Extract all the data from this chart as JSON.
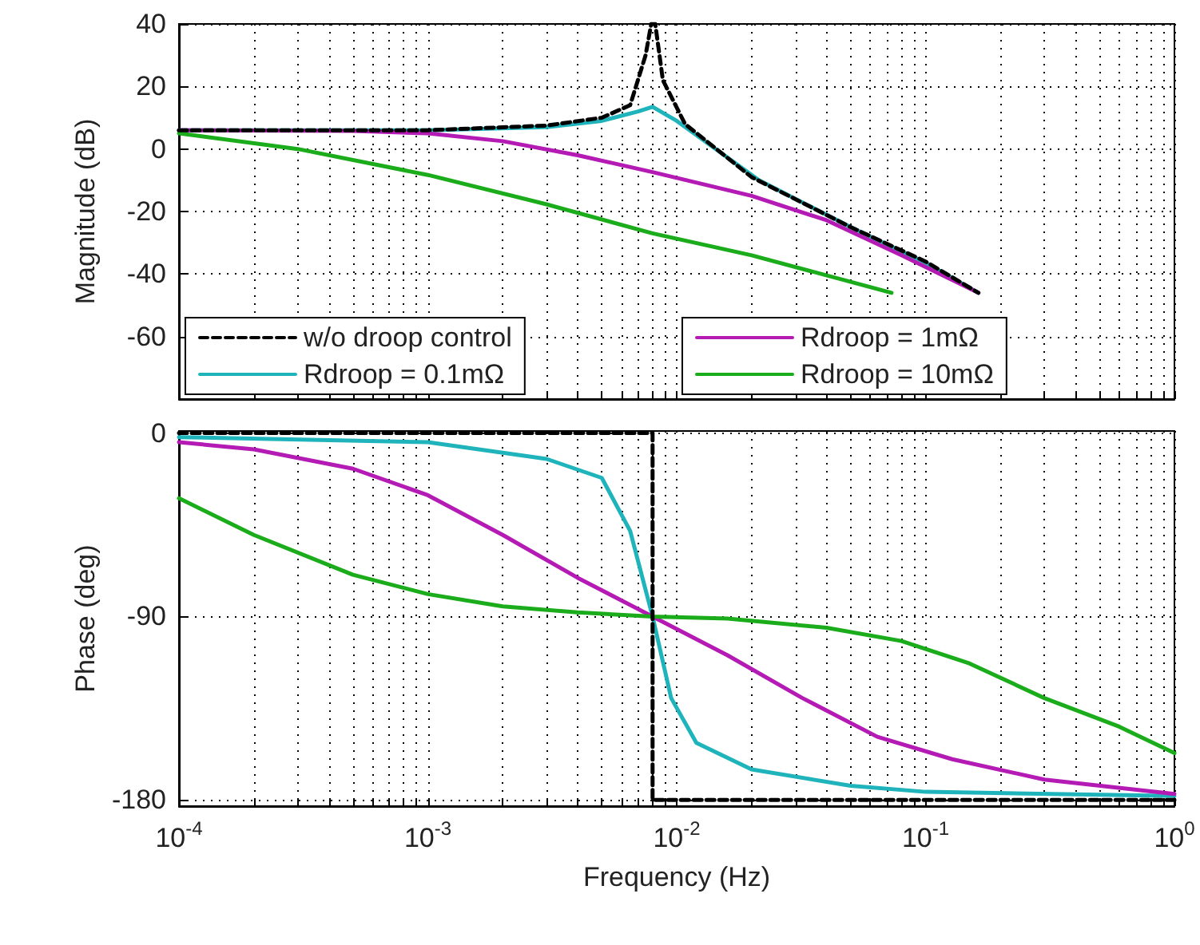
{
  "chart_data": [
    {
      "type": "line",
      "ylabel": "Magnitude (dB)",
      "log": "x",
      "grid": true,
      "legend": "bottom",
      "tick_labels": "y",
      "xlim": [
        0.0001,
        1
      ],
      "ylim": [
        -80,
        40
      ],
      "yticks": [
        -60,
        -40,
        -20,
        0,
        20,
        40
      ],
      "xticks": [
        0.0001,
        0.0002,
        0.0003,
        0.0004,
        0.0005,
        0.0006,
        0.0007,
        0.0008,
        0.0009,
        0.001,
        0.002,
        0.003,
        0.004,
        0.005,
        0.006,
        0.007,
        0.008,
        0.009,
        0.01,
        0.02,
        0.03,
        0.04,
        0.05,
        0.06,
        0.07,
        0.08,
        0.09,
        0.1,
        0.2,
        0.3,
        0.4,
        0.5,
        0.6,
        0.7,
        0.8,
        0.9,
        1
      ],
      "series": [
        {
          "name": "w/o droop control",
          "color": "#000000",
          "line_style": "dashed",
          "x": [
            0.0001,
            0.001,
            0.003,
            0.005,
            0.0065,
            0.0075,
            0.0079,
            0.0082,
            0.0088,
            0.0108,
            0.02,
            0.05,
            0.1,
            0.163
          ],
          "values": [
            6,
            6,
            7.5,
            10,
            14,
            30,
            40,
            40,
            22,
            8,
            -9,
            -25,
            -36,
            -46
          ]
        },
        {
          "name": "Rdroop = 0.1mΩ",
          "color": "#1fb4bc",
          "x": [
            0.0001,
            0.001,
            0.003,
            0.005,
            0.007,
            0.008,
            0.01,
            0.0214,
            0.05,
            0.1,
            0.163
          ],
          "values": [
            6,
            6,
            7,
            9,
            12,
            13.5,
            9,
            -10,
            -25,
            -36.4,
            -46
          ]
        },
        {
          "name": "Rdroop = 1mΩ",
          "color": "#b41ab4",
          "x": [
            0.0001,
            0.0005,
            0.001,
            0.002,
            0.004,
            0.008,
            0.02,
            0.04,
            0.08,
            0.163
          ],
          "values": [
            6,
            5.8,
            5,
            2.5,
            -2,
            -7.4,
            -15,
            -22.8,
            -34,
            -46
          ]
        },
        {
          "name": "Rdroop = 10mΩ",
          "color": "#1aac1a",
          "x": [
            0.0001,
            0.0003,
            0.001,
            0.003,
            0.008,
            0.02,
            0.073
          ],
          "values": [
            5,
            0,
            -8.3,
            -17.7,
            -27,
            -34,
            -46
          ]
        }
      ]
    },
    {
      "type": "line",
      "xlabel": "Frequency (Hz)",
      "ylabel": "Phase (deg)",
      "log": "x",
      "grid": true,
      "xlim": [
        0.0001,
        1
      ],
      "ylim": [
        -183,
        1
      ],
      "yticks": [
        -180,
        -90,
        0
      ],
      "xticks": [
        {
          "value": 0.0001,
          "label": "10$^{-4}$"
        },
        {
          "value": 0.0002,
          "label": null
        },
        {
          "value": 0.0003,
          "label": null
        },
        {
          "value": 0.0004,
          "label": null
        },
        {
          "value": 0.0005,
          "label": null
        },
        {
          "value": 0.0006,
          "label": null
        },
        {
          "value": 0.0007,
          "label": null
        },
        {
          "value": 0.0008,
          "label": null
        },
        {
          "value": 0.0009,
          "label": null
        },
        {
          "value": 0.001,
          "label": "10$^{-3}$"
        },
        {
          "value": 0.002,
          "label": null
        },
        {
          "value": 0.003,
          "label": null
        },
        {
          "value": 0.004,
          "label": null
        },
        {
          "value": 0.005,
          "label": null
        },
        {
          "value": 0.006,
          "label": null
        },
        {
          "value": 0.007,
          "label": null
        },
        {
          "value": 0.008,
          "label": null
        },
        {
          "value": 0.009,
          "label": null
        },
        {
          "value": 0.01,
          "label": "10$^{-2}$"
        },
        {
          "value": 0.02,
          "label": null
        },
        {
          "value": 0.03,
          "label": null
        },
        {
          "value": 0.04,
          "label": null
        },
        {
          "value": 0.05,
          "label": null
        },
        {
          "value": 0.06,
          "label": null
        },
        {
          "value": 0.07,
          "label": null
        },
        {
          "value": 0.08,
          "label": null
        },
        {
          "value": 0.09,
          "label": null
        },
        {
          "value": 0.1,
          "label": "10$^{-1}$"
        },
        {
          "value": 0.2,
          "label": null
        },
        {
          "value": 0.3,
          "label": null
        },
        {
          "value": 0.4,
          "label": null
        },
        {
          "value": 0.5,
          "label": null
        },
        {
          "value": 0.6,
          "label": null
        },
        {
          "value": 0.7,
          "label": null
        },
        {
          "value": 0.8,
          "label": null
        },
        {
          "value": 0.9,
          "label": null
        },
        {
          "value": 1,
          "label": "10$^{0}$"
        }
      ],
      "series": [
        {
          "color": "#000000",
          "line_style": "dashed",
          "x": [
            0.0001,
            0.008,
            0.008,
            1
          ],
          "values": [
            0,
            0,
            -180,
            -180
          ]
        },
        {
          "color": "#1fb4bc",
          "x": [
            0.0001,
            0.001,
            0.003,
            0.005,
            0.0065,
            0.008,
            0.0095,
            0.012,
            0.02,
            0.05,
            0.1,
            1
          ],
          "values": [
            -2,
            -4.5,
            -12.7,
            -22,
            -48,
            -90,
            -130,
            -152,
            -165,
            -173,
            -176,
            -178
          ]
        },
        {
          "color": "#b41ab4",
          "x": [
            0.0001,
            0.0002,
            0.0005,
            0.001,
            0.002,
            0.004,
            0.008,
            0.016,
            0.032,
            0.064,
            0.128,
            0.3,
            1
          ],
          "values": [
            -4.5,
            -8,
            -17.5,
            -30.5,
            -50,
            -71,
            -90,
            -109,
            -130,
            -149,
            -160,
            -170,
            -177
          ]
        },
        {
          "color": "#1aac1a",
          "x": [
            0.0001,
            0.0002,
            0.0005,
            0.001,
            0.002,
            0.004,
            0.008,
            0.016,
            0.04,
            0.08,
            0.15,
            0.3,
            0.6,
            1
          ],
          "values": [
            -32,
            -50,
            -69.5,
            -79,
            -85,
            -88,
            -90,
            -91,
            -95.5,
            -102,
            -113,
            -130,
            -144,
            -157
          ]
        }
      ]
    }
  ]
}
